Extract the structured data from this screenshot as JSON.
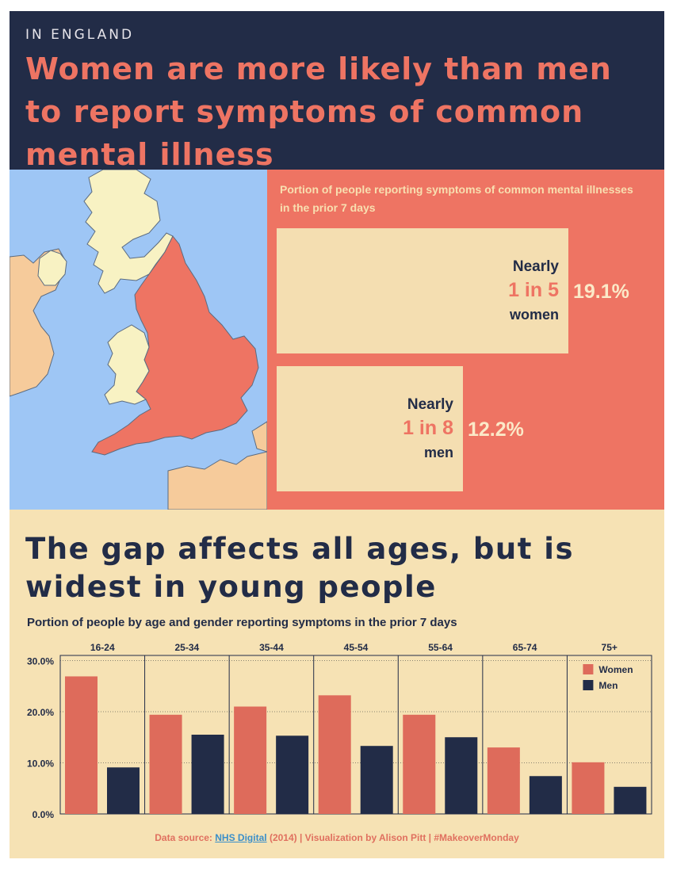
{
  "header": {
    "eyebrow": "IN ENGLAND",
    "title": "Women are more likely than men to report symptoms of common mental illness"
  },
  "colors": {
    "navy": "#222c47",
    "coral": "#ee7463",
    "bar_women": "#de6b5b",
    "bar_men": "#222c47",
    "cream": "#f6e2b4",
    "sea": "#9ec6f5",
    "land": "#f8f2c3"
  },
  "map": {
    "icon": "map-of-great-britain-england-highlighted"
  },
  "summary": {
    "caption": "Portion of people reporting symptoms of common mental illnesses in the prior 7 days",
    "women": {
      "nearly": "Nearly",
      "ratio": "1 in 5",
      "gender": "women",
      "pct_label": "19.1%",
      "value": 19.1
    },
    "men": {
      "nearly": "Nearly",
      "ratio": "1 in 8",
      "gender": "men",
      "pct_label": "12.2%",
      "value": 12.2
    }
  },
  "age_section": {
    "heading": "The gap affects all ages, but is widest in young people",
    "caption": "Portion of people by age and gender reporting symptoms in the prior 7 days"
  },
  "chart_data": {
    "type": "bar",
    "categories": [
      "16-24",
      "25-34",
      "35-44",
      "45-54",
      "55-64",
      "65-74",
      "75+"
    ],
    "series": [
      {
        "name": "Women",
        "values": [
          26.9,
          19.4,
          21.0,
          23.2,
          19.4,
          13.0,
          10.1
        ]
      },
      {
        "name": "Men",
        "values": [
          9.1,
          15.5,
          15.3,
          13.3,
          15.0,
          7.4,
          5.3
        ]
      }
    ],
    "ylim": [
      0,
      31
    ],
    "yticks": [
      {
        "value": 0,
        "label": "0.0%"
      },
      {
        "value": 10,
        "label": "10.0%"
      },
      {
        "value": 20,
        "label": "20.0%"
      },
      {
        "value": 30,
        "label": "30.0%"
      }
    ],
    "legend_position": "top-right",
    "grid": "dotted horizontal"
  },
  "footer": {
    "prefix": "Data source: ",
    "link_text": "NHS Digital",
    "suffix": " (2014) | Visualization by Alison Pitt | #MakeoverMonday"
  }
}
